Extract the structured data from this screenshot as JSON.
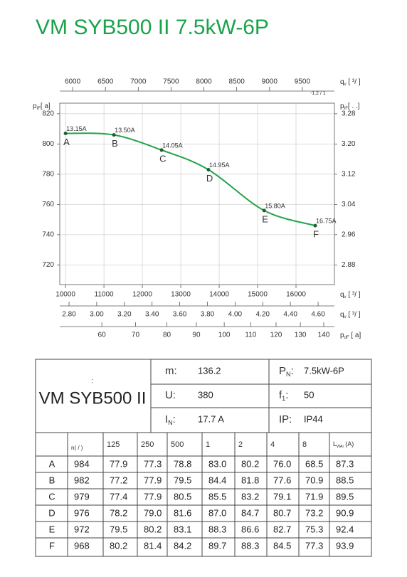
{
  "title": "VM SYB500 II 7.5kW-6P",
  "chart_data": {
    "type": "line",
    "color": "#22a34a",
    "point_color": "#1d5e33",
    "grid": true,
    "x": [
      10000,
      11260,
      12500,
      13720,
      15170,
      16500
    ],
    "series": [
      {
        "color": "#22a34a",
        "values": [
          807,
          806,
          796,
          783,
          756,
          746
        ],
        "point_labels": [
          "13.15A",
          "13.50A",
          "14.05A",
          "14.95A",
          "15.80A",
          "16.75A"
        ],
        "letters": [
          "A",
          "B",
          "C",
          "D",
          "E",
          "F"
        ]
      }
    ],
    "xlim": [
      9850,
      17000
    ],
    "xticks": [
      10000,
      11000,
      12000,
      13000,
      14000,
      15000,
      16000
    ],
    "x_label": {
      "sym": "q",
      "sub": "v",
      "rest": " [  ³/  ]"
    },
    "ylim": [
      707,
      827
    ],
    "yticks": [
      820,
      800,
      780,
      760,
      740,
      720
    ],
    "y_label": {
      "sym": "p",
      "sub": "IF",
      "rest": "[  a]"
    },
    "y2lim": [
      2.828,
      3.308
    ],
    "y2ticks": [
      3.28,
      {
        "value": 3.2,
        "label": "3.20"
      },
      3.12,
      3.04,
      2.96,
      2.88
    ],
    "y2_label": {
      "sym": "p",
      "sub": "IF",
      "rest": "[           .   .]"
    },
    "top_axis": {
      "lim": [
        5804,
        9989
      ],
      "ticks": [
        6000,
        6500,
        7000,
        7500,
        8000,
        8500,
        9000,
        9500
      ],
      "label": {
        "sym": "q",
        "sub": "v",
        "rest": " [     ³/     ]"
      },
      "note": "-1.2  /  1"
    },
    "bottom_axes": [
      {
        "lim": [
          2.733,
          4.718
        ],
        "scale": "linear",
        "ticks": [
          {
            "value": 2.8,
            "label": "2.80"
          },
          {
            "value": 3,
            "label": "3.00"
          },
          {
            "value": 3.2,
            "label": "3.20"
          },
          {
            "value": 3.4,
            "label": "3.40"
          },
          {
            "value": 3.6,
            "label": "3.60"
          },
          {
            "value": 3.8,
            "label": "3.80"
          },
          {
            "value": 4,
            "label": "4.00"
          },
          {
            "value": 4.2,
            "label": "4.20"
          },
          {
            "value": 4.4,
            "label": "4.40"
          },
          {
            "value": 4.6,
            "label": "4.60"
          }
        ],
        "label": {
          "sym": "q",
          "sub": "v",
          "rest": " [  ³/  ]"
        }
      },
      {
        "lim": [
          48.6,
          144.7
        ],
        "scale": "sqrt",
        "ticks": [
          60,
          70,
          80,
          90,
          100,
          110,
          120,
          130,
          140
        ],
        "label": {
          "sym": "p",
          "sub": "dF",
          "rest": " [  a]"
        }
      }
    ]
  },
  "spec_table": {
    "small": ":",
    "name": "VM SYB500 II",
    "left": [
      {
        "sym": "m:",
        "value": "136.2"
      },
      {
        "sym": "U:",
        "value": "380"
      },
      {
        "sym": "I",
        "sub": "N",
        "colon": ":",
        "value": "17.7  A"
      }
    ],
    "right": [
      {
        "sym": "P",
        "sub": "N",
        "colon": ":",
        "value": "7.5kW-6P"
      },
      {
        "sym": "f",
        "sub": "1",
        "colon": ":",
        "value": "50"
      },
      {
        "sym": "IP:",
        "value": "IP44"
      }
    ]
  },
  "sound_table": {
    "header": [
      "n(  /  )",
      "125",
      "250",
      "500",
      "1",
      "2",
      "4",
      "8",
      {
        "sym": "L",
        "sub": "WAi",
        "rest": "        (A)"
      }
    ],
    "rows": [
      [
        "A",
        "984",
        "77.9",
        "77.3",
        "78.8",
        "83.0",
        "80.2",
        "76.0",
        "68.5",
        "87.3"
      ],
      [
        "B",
        "982",
        "77.2",
        "77.9",
        "79.5",
        "84.4",
        "81.8",
        "77.6",
        "70.9",
        "88.5"
      ],
      [
        "C",
        "979",
        "77.4",
        "77.9",
        "80.5",
        "85.5",
        "83.2",
        "79.1",
        "71.9",
        "89.5"
      ],
      [
        "D",
        "976",
        "78.2",
        "79.0",
        "81.6",
        "87.0",
        "84.7",
        "80.7",
        "73.2",
        "90.9"
      ],
      [
        "E",
        "972",
        "79.5",
        "80.2",
        "83.1",
        "88.3",
        "86.6",
        "82.7",
        "75.3",
        "92.4"
      ],
      [
        "F",
        "968",
        "80.2",
        "81.4",
        "84.2",
        "89.7",
        "88.3",
        "84.5",
        "77.3",
        "93.9"
      ]
    ]
  }
}
